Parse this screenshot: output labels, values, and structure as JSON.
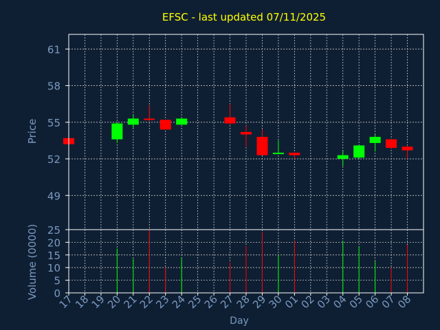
{
  "chart_data": {
    "type": "candlestick",
    "title": "EFSC - last updated 07/11/2025",
    "xlabel": "Day",
    "price_panel": {
      "ylabel": "Price",
      "ylim": [
        46.2,
        62.2
      ],
      "yticks": [
        49,
        52,
        55,
        58,
        61
      ],
      "grid": true
    },
    "volume_panel": {
      "ylabel": "Volume (0000)",
      "ylim": [
        0,
        25
      ],
      "yticks": [
        0,
        5,
        10,
        15,
        20,
        25
      ],
      "grid": true
    },
    "x_tick_labels": [
      "17",
      "18",
      "19",
      "20",
      "21",
      "22",
      "23",
      "24",
      "25",
      "26",
      "27",
      "28",
      "29",
      "30",
      "01",
      "02",
      "03",
      "04",
      "05",
      "06",
      "07",
      "08"
    ],
    "colors": {
      "background": "#0f1f33",
      "axis": "#ffffff",
      "grid": "#c8c8c8",
      "title": "#ffff00",
      "labels": "#7a9ac0",
      "up": "#00ff00",
      "down": "#ff0000"
    },
    "candles": [
      {
        "x": 17,
        "open": 53.7,
        "close": 53.2,
        "high": 53.7,
        "low": 53.2
      },
      {
        "x": 20,
        "open": 53.6,
        "close": 54.9,
        "high": 55.0,
        "low": 53.3
      },
      {
        "x": 21,
        "open": 54.8,
        "close": 55.3,
        "high": 55.6,
        "low": 54.5
      },
      {
        "x": 22,
        "open": 55.3,
        "close": 55.2,
        "high": 56.4,
        "low": 55.1
      },
      {
        "x": 23,
        "open": 55.2,
        "close": 54.4,
        "high": 55.2,
        "low": 54.4
      },
      {
        "x": 24,
        "open": 54.8,
        "close": 55.3,
        "high": 55.4,
        "low": 54.8
      },
      {
        "x": 27,
        "open": 55.4,
        "close": 54.9,
        "high": 56.5,
        "low": 54.8
      },
      {
        "x": 28,
        "open": 54.2,
        "close": 54.0,
        "high": 54.7,
        "low": 53.0
      },
      {
        "x": 29,
        "open": 53.8,
        "close": 52.3,
        "high": 54.4,
        "low": 52.3
      },
      {
        "x": 30,
        "open": 52.4,
        "close": 52.5,
        "high": 53.5,
        "low": 52.4
      },
      {
        "x": 31,
        "open": 52.5,
        "close": 52.3,
        "high": 52.5,
        "low": 52.0
      },
      {
        "x": 34,
        "open": 52.0,
        "close": 52.3,
        "high": 52.7,
        "low": 51.4
      },
      {
        "x": 35,
        "open": 52.1,
        "close": 53.1,
        "high": 53.1,
        "low": 52.0
      },
      {
        "x": 36,
        "open": 53.3,
        "close": 53.8,
        "high": 54.0,
        "low": 52.6
      },
      {
        "x": 37,
        "open": 53.6,
        "close": 52.9,
        "high": 53.6,
        "low": 52.8
      },
      {
        "x": 38,
        "open": 53.0,
        "close": 52.7,
        "high": 53.1,
        "low": 52.0
      }
    ],
    "volume": [
      {
        "x": 17,
        "value": 0,
        "dir": "down"
      },
      {
        "x": 20,
        "value": 17.5,
        "dir": "up"
      },
      {
        "x": 21,
        "value": 13.5,
        "dir": "up"
      },
      {
        "x": 22,
        "value": 25,
        "dir": "down"
      },
      {
        "x": 23,
        "value": 10,
        "dir": "down"
      },
      {
        "x": 24,
        "value": 14,
        "dir": "up"
      },
      {
        "x": 27,
        "value": 12,
        "dir": "down"
      },
      {
        "x": 28,
        "value": 18.5,
        "dir": "down"
      },
      {
        "x": 29,
        "value": 24,
        "dir": "down"
      },
      {
        "x": 30,
        "value": 15,
        "dir": "up"
      },
      {
        "x": 31,
        "value": 20.5,
        "dir": "down"
      },
      {
        "x": 34,
        "value": 20.5,
        "dir": "up"
      },
      {
        "x": 35,
        "value": 18.5,
        "dir": "up"
      },
      {
        "x": 36,
        "value": 12.5,
        "dir": "up"
      },
      {
        "x": 37,
        "value": 10,
        "dir": "down"
      },
      {
        "x": 38,
        "value": 19,
        "dir": "down"
      }
    ]
  }
}
